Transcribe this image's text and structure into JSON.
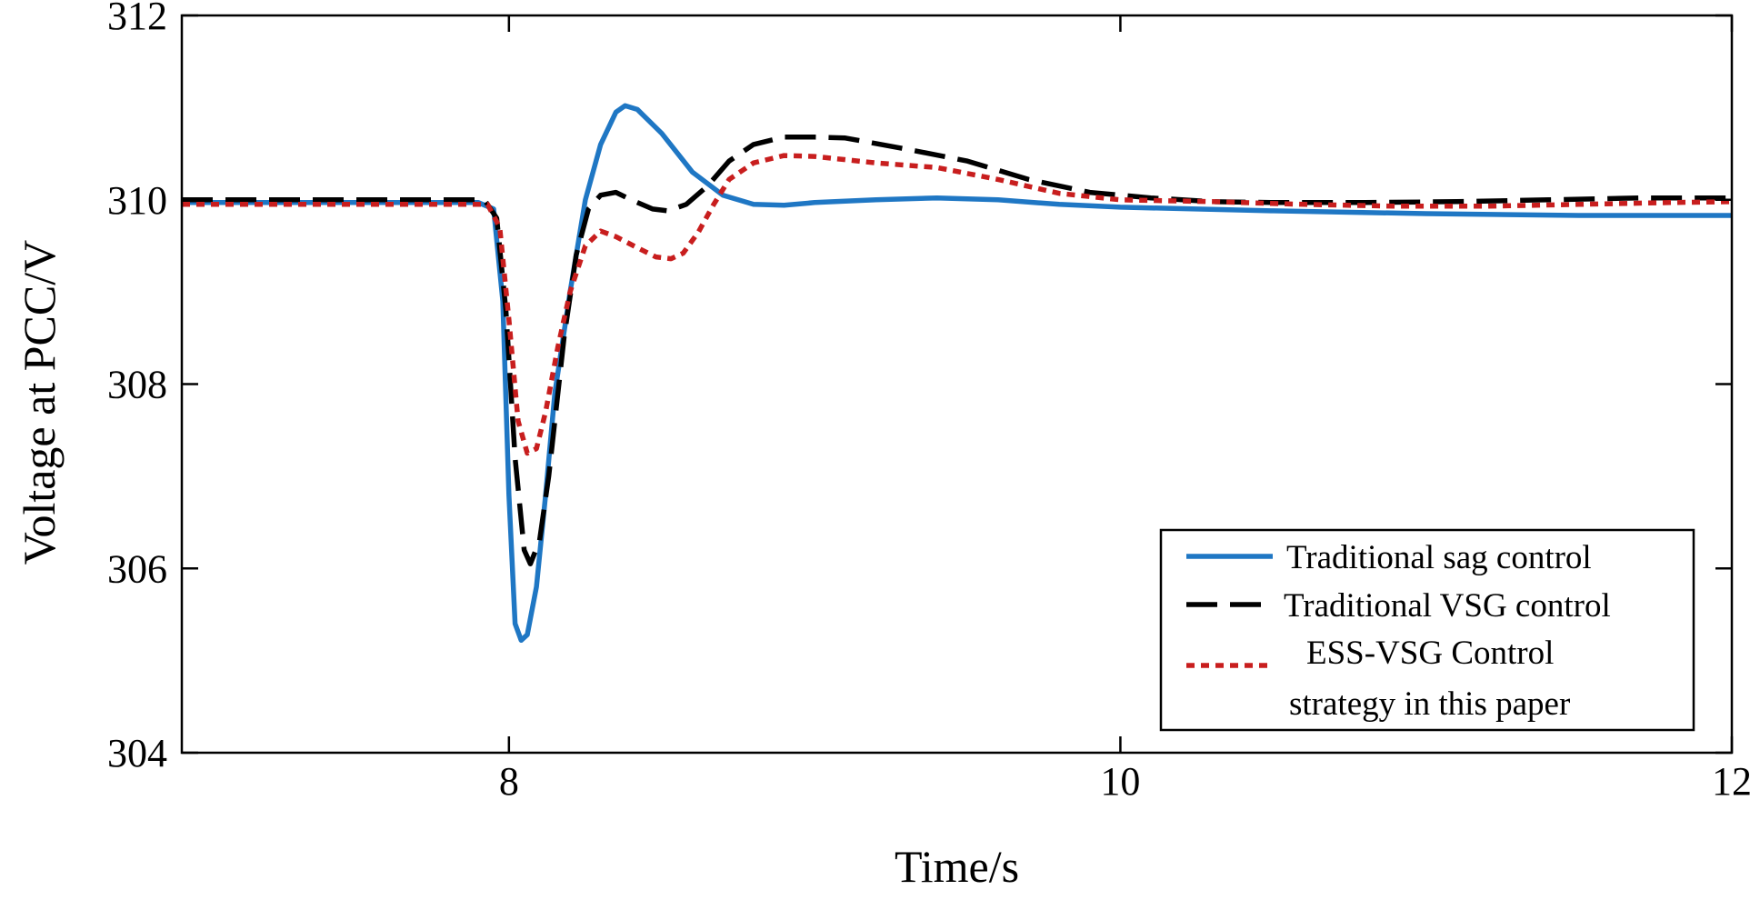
{
  "chart_data": {
    "type": "line",
    "title": "",
    "xlabel": "Time/s",
    "ylabel": "Voltage at PCC/V",
    "xlim": [
      6.93,
      12
    ],
    "ylim": [
      304,
      312
    ],
    "xticks": [
      8,
      10,
      12
    ],
    "yticks": [
      304,
      306,
      308,
      310,
      312
    ],
    "xtick_labels": [
      "8",
      "10",
      "12"
    ],
    "ytick_labels": [
      "304",
      "306",
      "308",
      "310",
      "312"
    ],
    "grid": false,
    "legend_position": "bottom-right",
    "series": [
      {
        "name": "Traditional sag control",
        "color": "#1f77c4",
        "style": "solid",
        "points": [
          [
            6.93,
            309.97
          ],
          [
            7.9,
            309.97
          ],
          [
            7.95,
            309.9
          ],
          [
            7.98,
            308.9
          ],
          [
            8.0,
            306.8
          ],
          [
            8.02,
            305.4
          ],
          [
            8.04,
            305.22
          ],
          [
            8.06,
            305.28
          ],
          [
            8.09,
            305.8
          ],
          [
            8.12,
            306.8
          ],
          [
            8.15,
            307.9
          ],
          [
            8.2,
            309.0
          ],
          [
            8.25,
            310.0
          ],
          [
            8.3,
            310.6
          ],
          [
            8.35,
            310.95
          ],
          [
            8.38,
            311.02
          ],
          [
            8.42,
            310.98
          ],
          [
            8.5,
            310.72
          ],
          [
            8.6,
            310.3
          ],
          [
            8.7,
            310.05
          ],
          [
            8.8,
            309.95
          ],
          [
            8.9,
            309.94
          ],
          [
            9.0,
            309.97
          ],
          [
            9.2,
            310.0
          ],
          [
            9.4,
            310.02
          ],
          [
            9.6,
            310.0
          ],
          [
            9.8,
            309.95
          ],
          [
            10.0,
            309.92
          ],
          [
            10.5,
            309.88
          ],
          [
            11.0,
            309.85
          ],
          [
            11.5,
            309.83
          ],
          [
            12.0,
            309.83
          ]
        ]
      },
      {
        "name": "Traditional VSG control",
        "color": "#000000",
        "style": "dashed",
        "points": [
          [
            6.93,
            310.0
          ],
          [
            7.92,
            310.0
          ],
          [
            7.96,
            309.8
          ],
          [
            7.99,
            308.8
          ],
          [
            8.02,
            307.2
          ],
          [
            8.05,
            306.2
          ],
          [
            8.07,
            306.05
          ],
          [
            8.1,
            306.3
          ],
          [
            8.13,
            307.0
          ],
          [
            8.18,
            308.5
          ],
          [
            8.22,
            309.4
          ],
          [
            8.26,
            309.9
          ],
          [
            8.3,
            310.05
          ],
          [
            8.35,
            310.08
          ],
          [
            8.4,
            310.0
          ],
          [
            8.47,
            309.9
          ],
          [
            8.52,
            309.88
          ],
          [
            8.58,
            309.95
          ],
          [
            8.65,
            310.15
          ],
          [
            8.72,
            310.42
          ],
          [
            8.8,
            310.6
          ],
          [
            8.9,
            310.68
          ],
          [
            9.0,
            310.68
          ],
          [
            9.1,
            310.67
          ],
          [
            9.3,
            310.55
          ],
          [
            9.5,
            310.42
          ],
          [
            9.7,
            310.22
          ],
          [
            9.9,
            310.08
          ],
          [
            10.1,
            310.02
          ],
          [
            10.3,
            309.98
          ],
          [
            10.5,
            309.97
          ],
          [
            10.8,
            309.97
          ],
          [
            11.1,
            309.98
          ],
          [
            11.4,
            310.0
          ],
          [
            11.7,
            310.02
          ],
          [
            12.0,
            310.02
          ]
        ]
      },
      {
        "name": "ESS-VSG Control strategy in this paper",
        "color": "#c81e1e",
        "style": "dotted",
        "points": [
          [
            6.93,
            309.95
          ],
          [
            7.93,
            309.95
          ],
          [
            7.97,
            309.7
          ],
          [
            8.0,
            308.7
          ],
          [
            8.03,
            307.6
          ],
          [
            8.06,
            307.25
          ],
          [
            8.09,
            307.3
          ],
          [
            8.12,
            307.7
          ],
          [
            8.16,
            308.4
          ],
          [
            8.2,
            309.0
          ],
          [
            8.25,
            309.5
          ],
          [
            8.3,
            309.66
          ],
          [
            8.35,
            309.6
          ],
          [
            8.42,
            309.48
          ],
          [
            8.48,
            309.38
          ],
          [
            8.53,
            309.36
          ],
          [
            8.57,
            309.42
          ],
          [
            8.62,
            309.65
          ],
          [
            8.67,
            309.95
          ],
          [
            8.72,
            310.22
          ],
          [
            8.8,
            310.4
          ],
          [
            8.9,
            310.48
          ],
          [
            9.0,
            310.47
          ],
          [
            9.2,
            310.4
          ],
          [
            9.4,
            310.35
          ],
          [
            9.6,
            310.22
          ],
          [
            9.8,
            310.07
          ],
          [
            10.0,
            310.0
          ],
          [
            10.3,
            309.98
          ],
          [
            10.6,
            309.95
          ],
          [
            10.9,
            309.93
          ],
          [
            11.2,
            309.93
          ],
          [
            11.5,
            309.95
          ],
          [
            11.8,
            309.97
          ],
          [
            12.0,
            309.98
          ]
        ]
      }
    ],
    "legend_entries": [
      [
        "Traditional sag control"
      ],
      [
        "Traditional VSG control"
      ],
      [
        "ESS-VSG Control",
        "strategy in this paper"
      ]
    ]
  }
}
